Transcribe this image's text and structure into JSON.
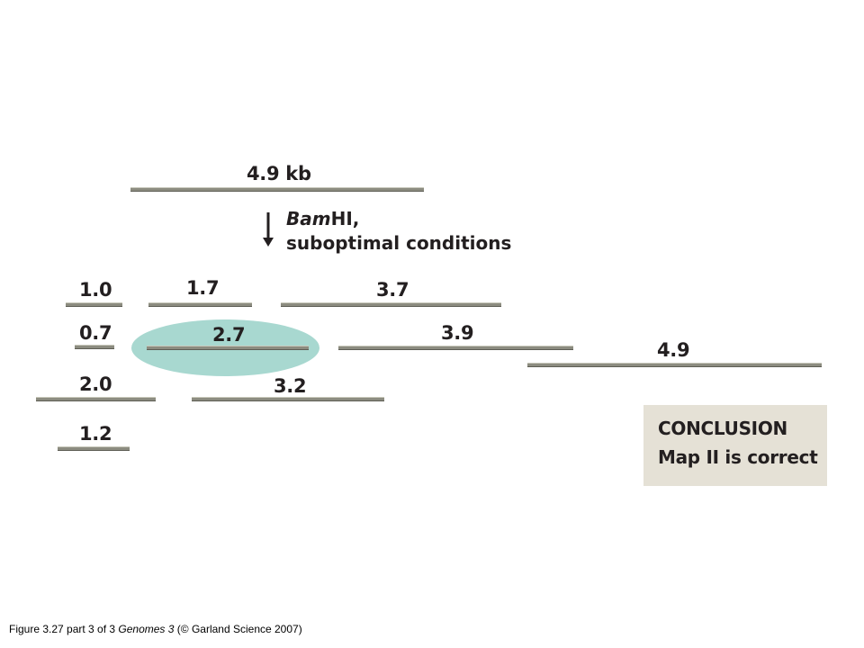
{
  "top_fragment": {
    "label": "4.9 kb"
  },
  "digest": {
    "enzyme": "Bam",
    "enzyme_suffix": "HI,",
    "conditions": "suboptimal conditions"
  },
  "fragments": {
    "row1": [
      "1.0",
      "1.7",
      "3.7"
    ],
    "row2": [
      "0.7",
      "2.7",
      "3.9",
      "4.9"
    ],
    "row3": [
      "2.0",
      "3.2"
    ],
    "row4": [
      "1.2"
    ]
  },
  "conclusion": {
    "title": "CONCLUSION",
    "text": "Map II is correct"
  },
  "caption": {
    "prefix": "Figure 3.27 part 3 of 3  ",
    "book": "Genomes 3",
    "suffix": " (© Garland Science 2007)"
  },
  "colors": {
    "highlight": "#a8d8d0",
    "fragment": "#8c8c80",
    "conclusion_bg": "#e5e1d6"
  }
}
